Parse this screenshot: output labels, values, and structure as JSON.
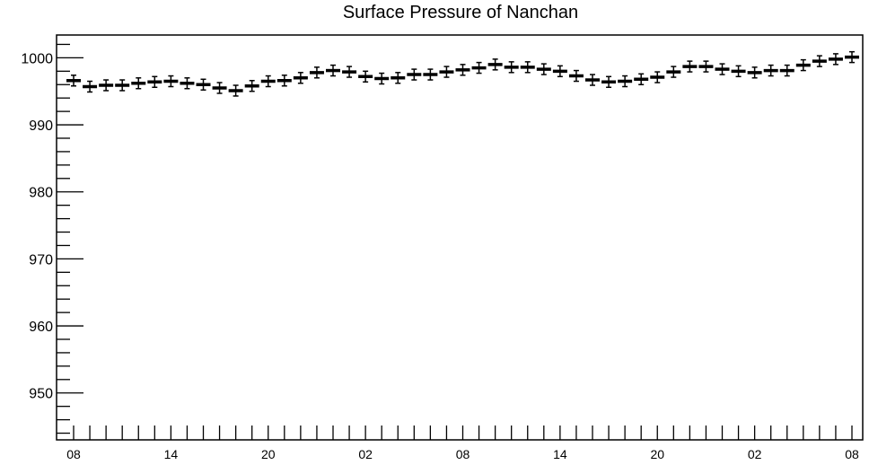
{
  "chart_data": {
    "type": "scatter",
    "title": "Surface Pressure of Nanchan",
    "xlabel": "",
    "ylabel": "",
    "ylim": [
      943,
      1003.4
    ],
    "y_ticks": [
      "1000",
      "990",
      "980",
      "970",
      "960",
      "950"
    ],
    "x_ticks": [
      "08",
      "14",
      "20",
      "02",
      "08",
      "14",
      "20",
      "02",
      "08"
    ],
    "grid": false,
    "legend": "none",
    "marker_style": "error bars with horizontal bar marker",
    "color": "#000000",
    "x_start": "08",
    "x_step_hours": 1,
    "series": [
      {
        "values": [
          996.6,
          995.7,
          995.9,
          995.9,
          996.2,
          996.4,
          996.5,
          996.2,
          996.0,
          995.5,
          995.1,
          995.8,
          996.5,
          996.6,
          997.0,
          997.8,
          998.1,
          997.9,
          997.2,
          996.9,
          997.0,
          997.5,
          997.5,
          997.9,
          998.2,
          998.5,
          999.0,
          998.6,
          998.6,
          998.3,
          998.0,
          997.3,
          996.7,
          996.4,
          996.5,
          996.8,
          997.1,
          997.9,
          998.7,
          998.7,
          998.3,
          998.0,
          997.8,
          998.1,
          998.1,
          998.9,
          999.5,
          999.8,
          1000.1
        ],
        "errors": [
          0.8,
          0.8,
          0.8,
          0.8,
          0.8,
          0.8,
          0.8,
          0.8,
          0.8,
          0.8,
          0.8,
          0.8,
          0.8,
          0.8,
          0.8,
          0.8,
          0.8,
          0.8,
          0.8,
          0.8,
          0.8,
          0.8,
          0.8,
          0.8,
          0.8,
          0.8,
          0.8,
          0.8,
          0.8,
          0.8,
          0.8,
          0.8,
          0.8,
          0.8,
          0.8,
          0.8,
          0.8,
          0.8,
          0.8,
          0.8,
          0.8,
          0.8,
          0.8,
          0.8,
          0.8,
          0.8,
          0.8,
          0.8,
          0.8
        ]
      }
    ]
  }
}
